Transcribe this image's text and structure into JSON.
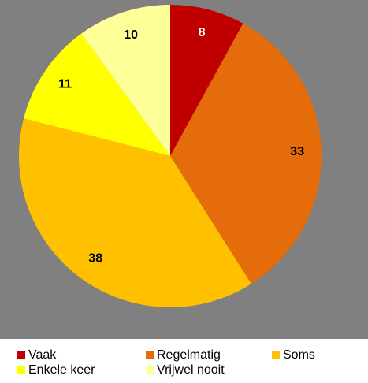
{
  "chart_data": {
    "type": "pie",
    "categories": [
      "Vaak",
      "Regelmatig",
      "Soms",
      "Enkele keer",
      "Vrijwel nooit"
    ],
    "values": [
      8,
      33,
      38,
      11,
      10
    ],
    "colors": [
      "#c00000",
      "#e46c0a",
      "#ffc000",
      "#ffff00",
      "#ffff99"
    ],
    "legend": "bottom"
  }
}
